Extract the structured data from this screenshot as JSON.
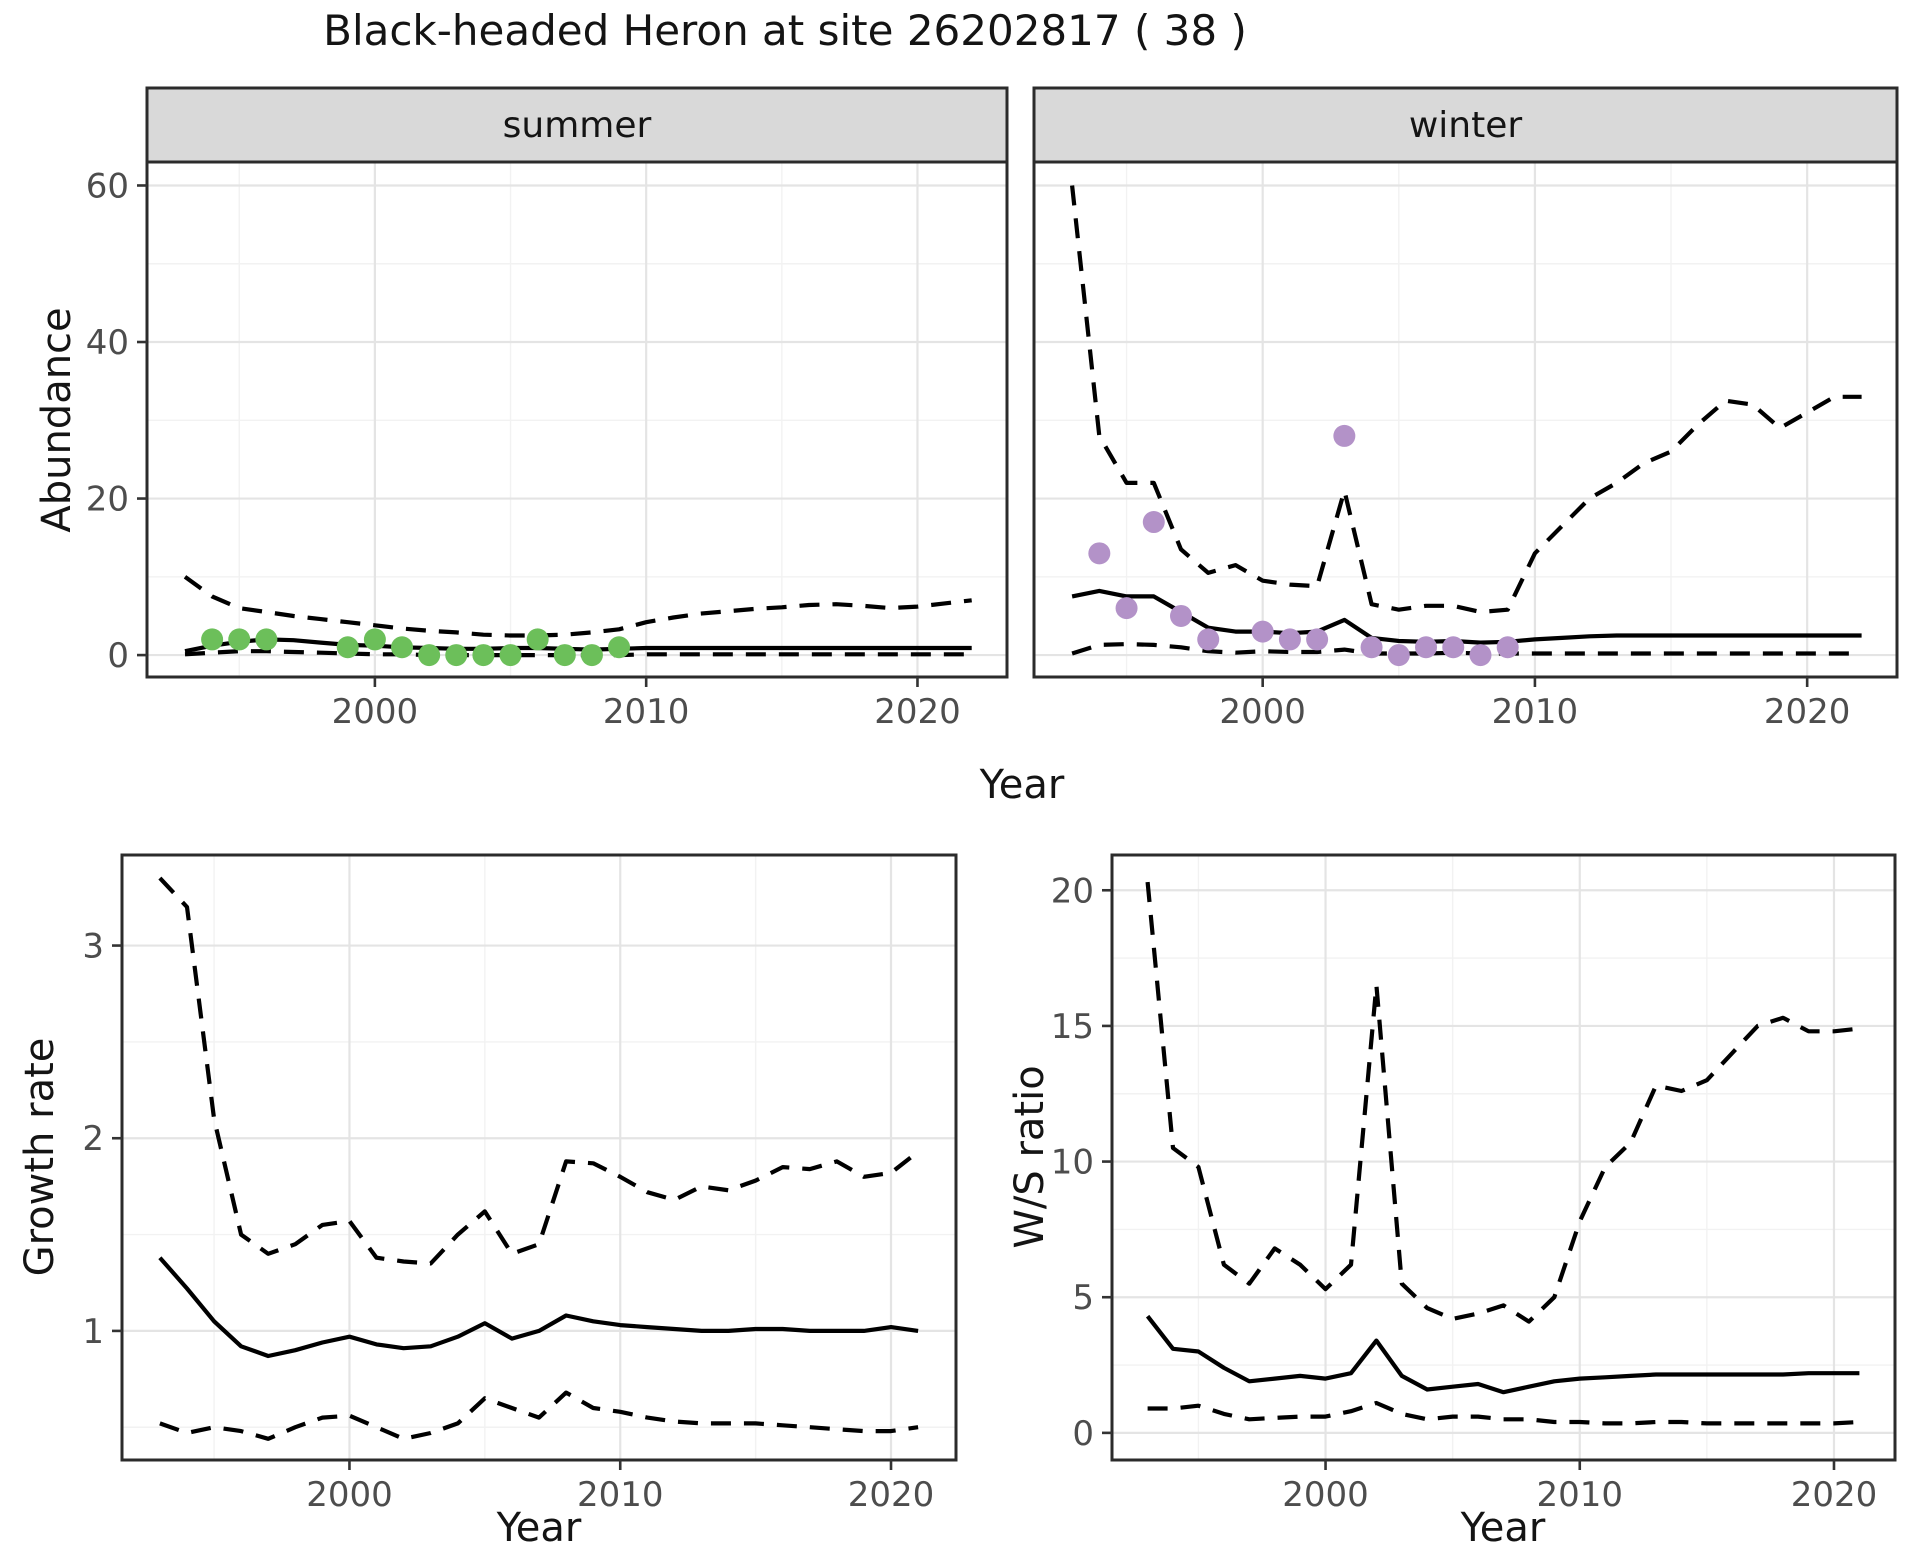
{
  "title": "Black-headed Heron at site 26202817 ( 38 )",
  "colors": {
    "summer_dot": "#6cbf5a",
    "winter_dot": "#b392c8",
    "line": "#000000",
    "grid_major": "#e4e4e4",
    "grid_minor": "#f2f2f2",
    "strip_bg": "#d9d9d9",
    "panel_border": "#2b2b2b",
    "axis_text": "#4d4d4d",
    "panel_bg": "#ffffff"
  },
  "chart_data": [
    {
      "id": "abundance-summer",
      "type": "line",
      "strip": "summer",
      "ylabel": "Abundance",
      "xlabel": "Year",
      "xlim": [
        1991.6,
        2023.3
      ],
      "ylim": [
        -2.8,
        63
      ],
      "xticks": [
        2000,
        2010,
        2020
      ],
      "xminor": [
        1995,
        2005,
        2015
      ],
      "yticks": [
        0,
        20,
        40,
        60
      ],
      "yminor": [
        10,
        30,
        50
      ],
      "grid": true,
      "legend": "none",
      "x": [
        1993,
        1994,
        1995,
        1996,
        1997,
        1998,
        1999,
        2000,
        2001,
        2002,
        2003,
        2004,
        2005,
        2006,
        2007,
        2008,
        2009,
        2010,
        2011,
        2012,
        2013,
        2014,
        2015,
        2016,
        2017,
        2018,
        2019,
        2020,
        2021,
        2022
      ],
      "series": [
        {
          "name": "median",
          "style": "solid",
          "values": [
            0.5,
            1.2,
            1.7,
            2.0,
            1.9,
            1.6,
            1.3,
            1.2,
            1.0,
            0.9,
            0.8,
            0.8,
            0.9,
            0.9,
            0.8,
            0.7,
            0.8,
            0.9,
            0.9,
            0.9,
            0.9,
            0.9,
            0.9,
            0.9,
            0.9,
            0.9,
            0.9,
            0.9,
            0.9,
            0.9
          ]
        },
        {
          "name": "upper-ci",
          "style": "dashed",
          "values": [
            10,
            7.5,
            6,
            5.5,
            5,
            4.6,
            4.2,
            3.8,
            3.4,
            3.1,
            2.9,
            2.6,
            2.5,
            2.5,
            2.6,
            2.9,
            3.3,
            4.2,
            4.8,
            5.3,
            5.6,
            5.9,
            6.1,
            6.4,
            6.5,
            6.3,
            6.0,
            6.2,
            6.6,
            7.0
          ]
        },
        {
          "name": "lower-ci",
          "style": "dashed",
          "values": [
            0.1,
            0.3,
            0.5,
            0.5,
            0.4,
            0.3,
            0.2,
            0.1,
            0.1,
            0,
            0,
            0,
            0,
            0,
            0,
            0,
            0,
            0.1,
            0.1,
            0.1,
            0.1,
            0.1,
            0.1,
            0.1,
            0.1,
            0.1,
            0.1,
            0.1,
            0.1,
            0.1
          ]
        }
      ],
      "points": {
        "name": "observed-counts-summer",
        "color_key": "summer_dot",
        "x": [
          1994,
          1995,
          1996,
          1999,
          2000,
          2001,
          2002,
          2003,
          2004,
          2005,
          2006,
          2007,
          2008,
          2009
        ],
        "y": [
          2,
          2,
          2,
          1,
          2,
          1,
          0,
          0,
          0,
          0,
          2,
          0,
          0,
          1
        ]
      }
    },
    {
      "id": "abundance-winter",
      "type": "line",
      "strip": "winter",
      "ylabel": "",
      "xlabel": "Year",
      "xlim": [
        1991.6,
        2023.3
      ],
      "ylim": [
        -2.8,
        63
      ],
      "xticks": [
        2000,
        2010,
        2020
      ],
      "xminor": [
        1995,
        2005,
        2015
      ],
      "yticks": [
        0,
        20,
        40,
        60
      ],
      "yminor": [
        10,
        30,
        50
      ],
      "grid": true,
      "legend": "none",
      "x": [
        1993,
        1994,
        1995,
        1996,
        1997,
        1998,
        1999,
        2000,
        2001,
        2002,
        2003,
        2004,
        2005,
        2006,
        2007,
        2008,
        2009,
        2010,
        2011,
        2012,
        2013,
        2014,
        2015,
        2016,
        2017,
        2018,
        2019,
        2020,
        2021,
        2022
      ],
      "series": [
        {
          "name": "median",
          "style": "solid",
          "values": [
            7.5,
            8.2,
            7.5,
            7.5,
            5.5,
            3.5,
            3.0,
            3.0,
            2.8,
            3.0,
            4.5,
            2.2,
            1.8,
            1.7,
            1.8,
            1.6,
            1.7,
            2.0,
            2.2,
            2.4,
            2.5,
            2.5,
            2.5,
            2.5,
            2.5,
            2.5,
            2.5,
            2.5,
            2.5,
            2.5
          ]
        },
        {
          "name": "upper-ci",
          "style": "dashed",
          "values": [
            60,
            28,
            22,
            22,
            13.5,
            10.5,
            11.5,
            9.5,
            9.0,
            8.8,
            21,
            6.5,
            5.8,
            6.3,
            6.3,
            5.5,
            5.8,
            13,
            16.5,
            20,
            22,
            24.5,
            26,
            29.5,
            32.5,
            32,
            29,
            31,
            33,
            33
          ]
        },
        {
          "name": "lower-ci",
          "style": "dashed",
          "values": [
            0.2,
            1.3,
            1.4,
            1.3,
            1.0,
            0.5,
            0.3,
            0.5,
            0.4,
            0.4,
            0.7,
            0.2,
            0.2,
            0.2,
            0.3,
            0.2,
            0.2,
            0.2,
            0.2,
            0.2,
            0.2,
            0.2,
            0.2,
            0.2,
            0.2,
            0.2,
            0.2,
            0.2,
            0.2,
            0.2
          ]
        }
      ],
      "points": {
        "name": "observed-counts-winter",
        "color_key": "winter_dot",
        "x": [
          1994,
          1995,
          1996,
          1997,
          1998,
          2000,
          2001,
          2002,
          2003,
          2004,
          2005,
          2006,
          2007,
          2008,
          2009
        ],
        "y": [
          13,
          6,
          17,
          5,
          2,
          3,
          2,
          2,
          28,
          1,
          0,
          1,
          1,
          0,
          1
        ]
      }
    },
    {
      "id": "growth-rate",
      "type": "line",
      "strip": "",
      "ylabel": "Growth rate",
      "xlabel": "Year",
      "xlim": [
        1991.6,
        2022.4
      ],
      "ylim": [
        0.33,
        3.47
      ],
      "xticks": [
        2000,
        2010,
        2020
      ],
      "xminor": [
        1995,
        2005,
        2015
      ],
      "yticks": [
        1,
        2,
        3
      ],
      "yminor": [
        0.5,
        1.5,
        2.5
      ],
      "grid": true,
      "legend": "none",
      "x": [
        1993,
        1994,
        1995,
        1996,
        1997,
        1998,
        1999,
        2000,
        2001,
        2002,
        2003,
        2004,
        2005,
        2006,
        2007,
        2008,
        2009,
        2010,
        2011,
        2012,
        2013,
        2014,
        2015,
        2016,
        2017,
        2018,
        2019,
        2020,
        2021
      ],
      "series": [
        {
          "name": "median",
          "style": "solid",
          "values": [
            1.38,
            1.22,
            1.05,
            0.92,
            0.87,
            0.9,
            0.94,
            0.97,
            0.93,
            0.91,
            0.92,
            0.97,
            1.04,
            0.96,
            1.0,
            1.08,
            1.05,
            1.03,
            1.02,
            1.01,
            1.0,
            1.0,
            1.01,
            1.01,
            1.0,
            1.0,
            1.0,
            1.02,
            1.0
          ]
        },
        {
          "name": "upper-ci",
          "style": "dashed",
          "values": [
            3.35,
            3.2,
            2.1,
            1.5,
            1.4,
            1.45,
            1.55,
            1.57,
            1.38,
            1.36,
            1.35,
            1.5,
            1.62,
            1.4,
            1.45,
            1.88,
            1.87,
            1.8,
            1.72,
            1.68,
            1.75,
            1.73,
            1.78,
            1.85,
            1.84,
            1.88,
            1.8,
            1.82,
            1.93
          ]
        },
        {
          "name": "lower-ci",
          "style": "dashed",
          "values": [
            0.52,
            0.47,
            0.5,
            0.48,
            0.44,
            0.5,
            0.55,
            0.56,
            0.5,
            0.44,
            0.47,
            0.52,
            0.65,
            0.6,
            0.55,
            0.68,
            0.6,
            0.58,
            0.55,
            0.53,
            0.52,
            0.52,
            0.52,
            0.51,
            0.5,
            0.49,
            0.48,
            0.48,
            0.5
          ]
        }
      ],
      "points": null
    },
    {
      "id": "ws-ratio",
      "type": "line",
      "strip": "",
      "ylabel": "W/S ratio",
      "xlabel": "Year",
      "xlim": [
        1991.6,
        2022.4
      ],
      "ylim": [
        -1,
        21.3
      ],
      "xticks": [
        2000,
        2010,
        2020
      ],
      "xminor": [
        1995,
        2005,
        2015
      ],
      "yticks": [
        0,
        5,
        10,
        15,
        20
      ],
      "yminor": [
        2.5,
        7.5,
        12.5,
        17.5
      ],
      "grid": true,
      "legend": "none",
      "x": [
        1993,
        1994,
        1995,
        1996,
        1997,
        1998,
        1999,
        2000,
        2001,
        2002,
        2003,
        2004,
        2005,
        2006,
        2007,
        2008,
        2009,
        2010,
        2011,
        2012,
        2013,
        2014,
        2015,
        2016,
        2017,
        2018,
        2019,
        2020,
        2021
      ],
      "series": [
        {
          "name": "median",
          "style": "solid",
          "values": [
            4.3,
            3.1,
            3.0,
            2.4,
            1.9,
            2.0,
            2.1,
            2.0,
            2.2,
            3.4,
            2.1,
            1.6,
            1.7,
            1.8,
            1.5,
            1.7,
            1.9,
            2.0,
            2.05,
            2.1,
            2.15,
            2.15,
            2.15,
            2.15,
            2.15,
            2.15,
            2.2,
            2.2,
            2.2
          ]
        },
        {
          "name": "upper-ci",
          "style": "dashed",
          "values": [
            20.3,
            10.5,
            9.8,
            6.2,
            5.5,
            6.8,
            6.2,
            5.3,
            6.2,
            16.5,
            5.5,
            4.6,
            4.2,
            4.4,
            4.7,
            4.1,
            5.0,
            7.8,
            9.8,
            10.7,
            12.8,
            12.6,
            13.0,
            14.0,
            15.0,
            15.3,
            14.8,
            14.8,
            14.9
          ]
        },
        {
          "name": "lower-ci",
          "style": "dashed",
          "values": [
            0.9,
            0.9,
            1.0,
            0.7,
            0.5,
            0.55,
            0.6,
            0.6,
            0.8,
            1.1,
            0.7,
            0.5,
            0.6,
            0.6,
            0.5,
            0.5,
            0.4,
            0.4,
            0.35,
            0.35,
            0.4,
            0.4,
            0.35,
            0.35,
            0.35,
            0.35,
            0.35,
            0.35,
            0.4
          ]
        }
      ],
      "points": null
    }
  ]
}
